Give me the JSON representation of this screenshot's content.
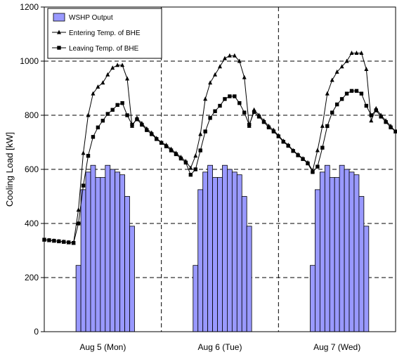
{
  "chart_data": {
    "type": "bar",
    "ylabel": "Cooling Load [kW]",
    "xlabel": "",
    "ylim": [
      0,
      1200
    ],
    "yticks": [
      0,
      200,
      400,
      600,
      800,
      1000,
      1200
    ],
    "x_range": [
      0,
      72
    ],
    "day_labels": [
      "Aug 5 (Mon)",
      "Aug 6 (Tue)",
      "Aug 7 (Wed)"
    ],
    "day_label_positions": [
      12,
      36,
      60
    ],
    "day_dividers": [
      24,
      48
    ],
    "grid": true,
    "legend_position": "top-left",
    "colors": {
      "bars": "#9999ff",
      "bar_edge": "#000000",
      "lines": "#000000",
      "grid": "#000000"
    },
    "x": [
      0,
      1,
      2,
      3,
      4,
      5,
      6,
      7,
      8,
      9,
      10,
      11,
      12,
      13,
      14,
      15,
      16,
      17,
      18,
      19,
      20,
      21,
      22,
      23,
      24,
      25,
      26,
      27,
      28,
      29,
      30,
      31,
      32,
      33,
      34,
      35,
      36,
      37,
      38,
      39,
      40,
      41,
      42,
      43,
      44,
      45,
      46,
      47,
      48,
      49,
      50,
      51,
      52,
      53,
      54,
      55,
      56,
      57,
      58,
      59,
      60,
      61,
      62,
      63,
      64,
      65,
      66,
      67,
      68,
      69,
      70,
      71,
      72
    ],
    "series": [
      {
        "name": "WSHP Output",
        "kind": "bar",
        "values": [
          0,
          0,
          0,
          0,
          0,
          0,
          0,
          245,
          525,
          590,
          615,
          570,
          570,
          615,
          600,
          590,
          580,
          500,
          390,
          0,
          0,
          0,
          0,
          0,
          0,
          0,
          0,
          0,
          0,
          0,
          0,
          245,
          525,
          590,
          615,
          570,
          570,
          615,
          600,
          590,
          580,
          500,
          390,
          0,
          0,
          0,
          0,
          0,
          0,
          0,
          0,
          0,
          0,
          0,
          0,
          245,
          525,
          590,
          615,
          570,
          570,
          615,
          600,
          590,
          580,
          500,
          390,
          0,
          0,
          0,
          0,
          0,
          0
        ]
      },
      {
        "name": "Entering Temp. of BHE",
        "kind": "line",
        "marker": "triangle",
        "values": [
          340,
          338,
          336,
          334,
          332,
          330,
          328,
          450,
          660,
          800,
          880,
          905,
          920,
          950,
          975,
          985,
          985,
          935,
          760,
          790,
          770,
          750,
          735,
          715,
          700,
          690,
          675,
          660,
          645,
          630,
          605,
          650,
          730,
          860,
          920,
          950,
          980,
          1010,
          1020,
          1020,
          1000,
          940,
          760,
          820,
          800,
          780,
          760,
          745,
          725,
          705,
          690,
          670,
          655,
          640,
          625,
          595,
          670,
          760,
          880,
          930,
          960,
          980,
          1000,
          1030,
          1030,
          1030,
          970,
          780,
          825,
          800,
          780,
          760,
          740
        ]
      },
      {
        "name": "Leaving Temp. of BHE",
        "kind": "line",
        "marker": "square",
        "values": [
          340,
          338,
          336,
          334,
          332,
          330,
          328,
          400,
          540,
          650,
          720,
          755,
          780,
          805,
          820,
          838,
          845,
          800,
          765,
          785,
          765,
          745,
          730,
          712,
          698,
          685,
          670,
          656,
          640,
          625,
          580,
          600,
          670,
          740,
          790,
          815,
          835,
          860,
          870,
          870,
          845,
          810,
          765,
          812,
          795,
          775,
          755,
          740,
          722,
          702,
          687,
          668,
          652,
          638,
          622,
          590,
          610,
          680,
          760,
          810,
          840,
          860,
          880,
          890,
          890,
          880,
          835,
          800,
          818,
          795,
          775,
          755,
          740
        ]
      }
    ]
  }
}
